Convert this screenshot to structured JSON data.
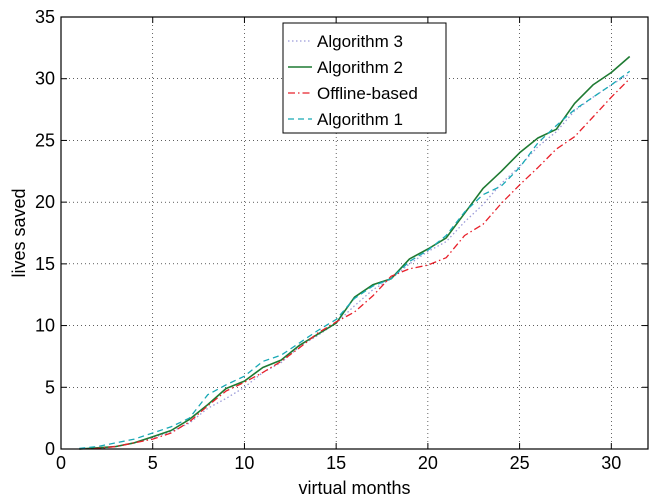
{
  "chart_data": {
    "type": "line",
    "title": "",
    "xlabel": "virtual months",
    "ylabel": "lives saved",
    "xlim": [
      0,
      32
    ],
    "ylim": [
      0,
      35
    ],
    "xticks": [
      0,
      5,
      10,
      15,
      20,
      25,
      30
    ],
    "yticks": [
      0,
      5,
      10,
      15,
      20,
      25,
      30,
      35
    ],
    "grid": true,
    "legend_position": "top-center",
    "x": [
      1,
      2,
      3,
      4,
      5,
      6,
      7,
      8,
      9,
      10,
      11,
      12,
      13,
      14,
      15,
      16,
      17,
      18,
      19,
      20,
      21,
      22,
      23,
      24,
      25,
      26,
      27,
      28,
      29,
      30,
      31
    ],
    "series": [
      {
        "name": "Algorithm 3",
        "color": "#9b9bd9",
        "dash": "dotted",
        "values": [
          0,
          0.05,
          0.2,
          0.5,
          0.9,
          1.4,
          2.1,
          3.3,
          4.1,
          5.0,
          6.2,
          7.0,
          8.3,
          9.2,
          10.2,
          11.6,
          12.9,
          13.8,
          15.0,
          16.0,
          16.8,
          18.4,
          19.8,
          21.5,
          22.9,
          24.5,
          25.7,
          27.4,
          28.5,
          29.5,
          30.4
        ]
      },
      {
        "name": "Algorithm 2",
        "color": "#1e7a32",
        "dash": "solid",
        "values": [
          0,
          0.1,
          0.2,
          0.5,
          1.0,
          1.5,
          2.4,
          3.6,
          4.9,
          5.5,
          6.6,
          7.2,
          8.4,
          9.3,
          10.2,
          12.3,
          13.3,
          13.8,
          15.4,
          16.2,
          17.1,
          19.1,
          21.1,
          22.5,
          24.0,
          25.2,
          25.9,
          28.0,
          29.5,
          30.5,
          31.8
        ]
      },
      {
        "name": "Offline-based",
        "color": "#e8202a",
        "dash": "dashdot",
        "values": [
          0,
          0.05,
          0.2,
          0.5,
          0.8,
          1.3,
          2.2,
          3.5,
          4.7,
          5.4,
          6.2,
          7.1,
          8.2,
          9.4,
          10.3,
          11.1,
          12.4,
          14.0,
          14.6,
          14.9,
          15.5,
          17.3,
          18.2,
          19.9,
          21.4,
          22.8,
          24.3,
          25.3,
          26.9,
          28.5,
          30.0
        ]
      },
      {
        "name": "Algorithm 1",
        "color": "#18a9b5",
        "dash": "dashed",
        "values": [
          0.05,
          0.2,
          0.5,
          0.8,
          1.3,
          1.8,
          2.5,
          4.4,
          5.2,
          5.9,
          7.1,
          7.6,
          8.6,
          9.6,
          10.5,
          12.2,
          13.2,
          13.8,
          15.2,
          16.1,
          17.3,
          19.2,
          20.6,
          21.3,
          22.8,
          24.8,
          26.2,
          27.5,
          28.5,
          29.5,
          30.6
        ]
      }
    ]
  }
}
